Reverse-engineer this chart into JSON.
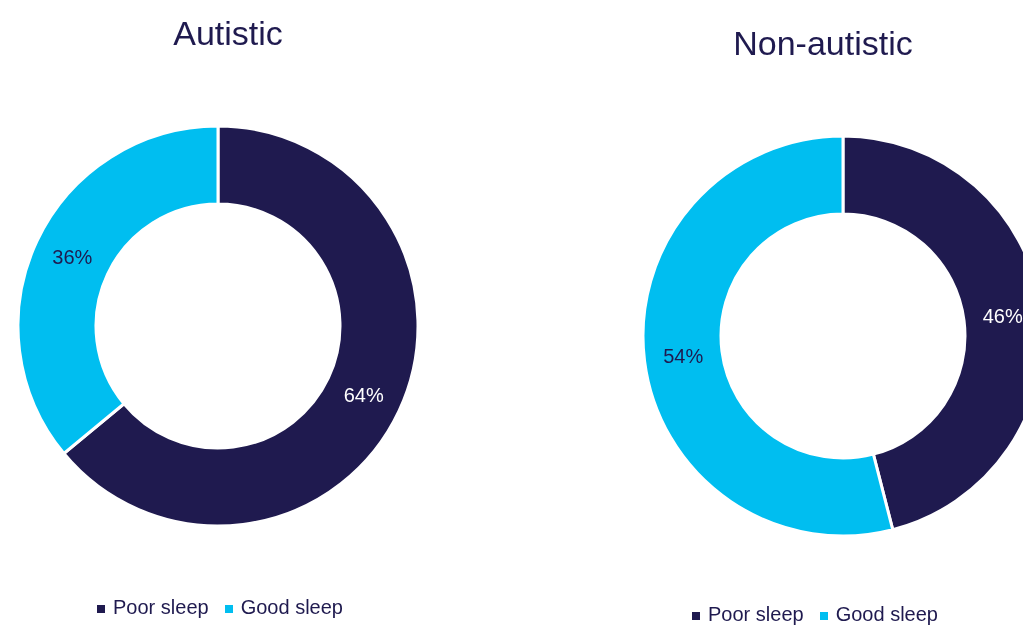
{
  "chart_data": [
    {
      "type": "donut",
      "title": "Autistic",
      "categories": [
        "Poor sleep",
        "Good sleep"
      ],
      "values": [
        64,
        36
      ],
      "colors": [
        "#1f1a4f",
        "#00bef0"
      ],
      "value_labels": [
        "64%",
        "36%"
      ],
      "legend": "bottom"
    },
    {
      "type": "donut",
      "title": "Non-autistic",
      "categories": [
        "Poor sleep",
        "Good sleep"
      ],
      "values": [
        46,
        54
      ],
      "colors": [
        "#1f1a4f",
        "#00bef0"
      ],
      "value_labels": [
        "46%",
        "54%"
      ],
      "legend": "bottom"
    }
  ]
}
